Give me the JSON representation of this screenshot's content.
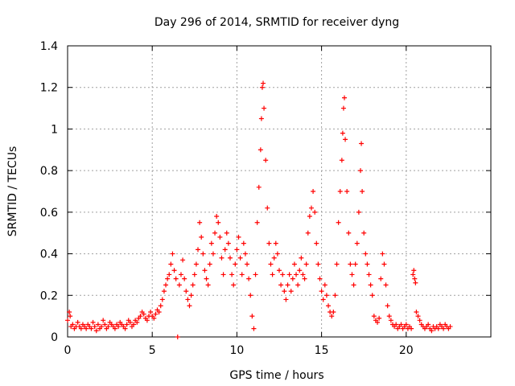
{
  "chart_data": {
    "type": "scatter",
    "title": "Day 296 of 2014, SRMTID for receiver dyng",
    "xlabel": "GPS time / hours",
    "ylabel": "SRMTID / TECUs",
    "xlim": [
      0,
      25
    ],
    "ylim": [
      0,
      1.4
    ],
    "xticks": [
      0,
      5,
      10,
      15,
      20
    ],
    "xtick_labels": [
      "0",
      "5",
      "10",
      "15",
      "20"
    ],
    "yticks": [
      0,
      0.2,
      0.4,
      0.6,
      0.8,
      1.0,
      1.2,
      1.4
    ],
    "ytick_labels": [
      "0",
      "0.2",
      "0.4",
      "0.6",
      "0.8",
      "1",
      "1.2",
      "1.4"
    ],
    "grid": true,
    "marker": "+",
    "series": [
      {
        "name": "SRMTID",
        "color": "#ff0000",
        "points": [
          [
            0.0,
            0.08
          ],
          [
            0.1,
            0.12
          ],
          [
            0.15,
            0.1
          ],
          [
            0.2,
            0.05
          ],
          [
            0.3,
            0.06
          ],
          [
            0.4,
            0.04
          ],
          [
            0.5,
            0.05
          ],
          [
            0.6,
            0.07
          ],
          [
            0.7,
            0.05
          ],
          [
            0.8,
            0.04
          ],
          [
            0.9,
            0.06
          ],
          [
            1.0,
            0.05
          ],
          [
            1.1,
            0.04
          ],
          [
            1.2,
            0.06
          ],
          [
            1.3,
            0.05
          ],
          [
            1.4,
            0.04
          ],
          [
            1.5,
            0.07
          ],
          [
            1.6,
            0.05
          ],
          [
            1.7,
            0.03
          ],
          [
            1.8,
            0.06
          ],
          [
            1.9,
            0.04
          ],
          [
            2.0,
            0.05
          ],
          [
            2.1,
            0.08
          ],
          [
            2.2,
            0.06
          ],
          [
            2.3,
            0.04
          ],
          [
            2.4,
            0.05
          ],
          [
            2.5,
            0.07
          ],
          [
            2.6,
            0.06
          ],
          [
            2.7,
            0.05
          ],
          [
            2.8,
            0.04
          ],
          [
            2.9,
            0.06
          ],
          [
            3.0,
            0.05
          ],
          [
            3.1,
            0.07
          ],
          [
            3.2,
            0.06
          ],
          [
            3.3,
            0.05
          ],
          [
            3.4,
            0.04
          ],
          [
            3.5,
            0.06
          ],
          [
            3.6,
            0.08
          ],
          [
            3.7,
            0.07
          ],
          [
            3.8,
            0.05
          ],
          [
            3.9,
            0.06
          ],
          [
            4.0,
            0.08
          ],
          [
            4.1,
            0.07
          ],
          [
            4.2,
            0.09
          ],
          [
            4.3,
            0.1
          ],
          [
            4.4,
            0.12
          ],
          [
            4.5,
            0.11
          ],
          [
            4.6,
            0.09
          ],
          [
            4.7,
            0.08
          ],
          [
            4.8,
            0.1
          ],
          [
            4.9,
            0.12
          ],
          [
            5.0,
            0.1
          ],
          [
            5.1,
            0.09
          ],
          [
            5.2,
            0.11
          ],
          [
            5.3,
            0.13
          ],
          [
            5.4,
            0.12
          ],
          [
            5.5,
            0.15
          ],
          [
            5.6,
            0.18
          ],
          [
            5.7,
            0.22
          ],
          [
            5.8,
            0.25
          ],
          [
            5.9,
            0.28
          ],
          [
            6.0,
            0.3
          ],
          [
            6.1,
            0.35
          ],
          [
            6.2,
            0.4
          ],
          [
            6.3,
            0.32
          ],
          [
            6.4,
            0.28
          ],
          [
            6.5,
            0.0
          ],
          [
            6.6,
            0.25
          ],
          [
            6.7,
            0.3
          ],
          [
            6.8,
            0.37
          ],
          [
            6.9,
            0.28
          ],
          [
            7.0,
            0.22
          ],
          [
            7.1,
            0.18
          ],
          [
            7.2,
            0.15
          ],
          [
            7.3,
            0.2
          ],
          [
            7.4,
            0.25
          ],
          [
            7.5,
            0.3
          ],
          [
            7.6,
            0.35
          ],
          [
            7.7,
            0.42
          ],
          [
            7.8,
            0.55
          ],
          [
            7.9,
            0.48
          ],
          [
            8.0,
            0.4
          ],
          [
            8.1,
            0.32
          ],
          [
            8.2,
            0.28
          ],
          [
            8.3,
            0.25
          ],
          [
            8.4,
            0.35
          ],
          [
            8.5,
            0.45
          ],
          [
            8.6,
            0.4
          ],
          [
            8.7,
            0.5
          ],
          [
            8.8,
            0.58
          ],
          [
            8.9,
            0.55
          ],
          [
            9.0,
            0.48
          ],
          [
            9.1,
            0.38
          ],
          [
            9.2,
            0.3
          ],
          [
            9.3,
            0.42
          ],
          [
            9.4,
            0.5
          ],
          [
            9.5,
            0.45
          ],
          [
            9.6,
            0.38
          ],
          [
            9.7,
            0.3
          ],
          [
            9.8,
            0.25
          ],
          [
            9.9,
            0.35
          ],
          [
            10.0,
            0.42
          ],
          [
            10.1,
            0.48
          ],
          [
            10.2,
            0.38
          ],
          [
            10.3,
            0.3
          ],
          [
            10.4,
            0.45
          ],
          [
            10.5,
            0.4
          ],
          [
            10.6,
            0.35
          ],
          [
            10.7,
            0.28
          ],
          [
            10.8,
            0.2
          ],
          [
            10.9,
            0.1
          ],
          [
            11.0,
            0.04
          ],
          [
            11.1,
            0.3
          ],
          [
            11.2,
            0.55
          ],
          [
            11.3,
            0.72
          ],
          [
            11.4,
            0.9
          ],
          [
            11.45,
            1.05
          ],
          [
            11.5,
            1.2
          ],
          [
            11.55,
            1.22
          ],
          [
            11.6,
            1.1
          ],
          [
            11.7,
            0.85
          ],
          [
            11.8,
            0.62
          ],
          [
            11.9,
            0.45
          ],
          [
            12.0,
            0.35
          ],
          [
            12.1,
            0.3
          ],
          [
            12.2,
            0.38
          ],
          [
            12.3,
            0.45
          ],
          [
            12.4,
            0.4
          ],
          [
            12.5,
            0.32
          ],
          [
            12.6,
            0.25
          ],
          [
            12.7,
            0.3
          ],
          [
            12.8,
            0.22
          ],
          [
            12.9,
            0.18
          ],
          [
            13.0,
            0.25
          ],
          [
            13.1,
            0.3
          ],
          [
            13.2,
            0.22
          ],
          [
            13.3,
            0.28
          ],
          [
            13.4,
            0.35
          ],
          [
            13.5,
            0.3
          ],
          [
            13.6,
            0.25
          ],
          [
            13.7,
            0.32
          ],
          [
            13.8,
            0.38
          ],
          [
            13.9,
            0.3
          ],
          [
            14.0,
            0.28
          ],
          [
            14.1,
            0.35
          ],
          [
            14.2,
            0.5
          ],
          [
            14.3,
            0.58
          ],
          [
            14.4,
            0.62
          ],
          [
            14.5,
            0.7
          ],
          [
            14.6,
            0.6
          ],
          [
            14.7,
            0.45
          ],
          [
            14.8,
            0.35
          ],
          [
            14.9,
            0.28
          ],
          [
            15.0,
            0.22
          ],
          [
            15.1,
            0.18
          ],
          [
            15.2,
            0.25
          ],
          [
            15.3,
            0.2
          ],
          [
            15.4,
            0.15
          ],
          [
            15.5,
            0.12
          ],
          [
            15.6,
            0.1
          ],
          [
            15.7,
            0.12
          ],
          [
            15.8,
            0.2
          ],
          [
            15.9,
            0.35
          ],
          [
            16.0,
            0.55
          ],
          [
            16.1,
            0.7
          ],
          [
            16.2,
            0.85
          ],
          [
            16.25,
            0.98
          ],
          [
            16.3,
            1.1
          ],
          [
            16.35,
            1.15
          ],
          [
            16.4,
            0.95
          ],
          [
            16.5,
            0.7
          ],
          [
            16.6,
            0.5
          ],
          [
            16.7,
            0.35
          ],
          [
            16.8,
            0.3
          ],
          [
            16.9,
            0.25
          ],
          [
            17.0,
            0.35
          ],
          [
            17.1,
            0.45
          ],
          [
            17.2,
            0.6
          ],
          [
            17.3,
            0.8
          ],
          [
            17.35,
            0.93
          ],
          [
            17.4,
            0.7
          ],
          [
            17.5,
            0.5
          ],
          [
            17.6,
            0.4
          ],
          [
            17.7,
            0.35
          ],
          [
            17.8,
            0.3
          ],
          [
            17.9,
            0.25
          ],
          [
            18.0,
            0.2
          ],
          [
            18.1,
            0.1
          ],
          [
            18.2,
            0.08
          ],
          [
            18.3,
            0.07
          ],
          [
            18.4,
            0.09
          ],
          [
            18.5,
            0.28
          ],
          [
            18.6,
            0.4
          ],
          [
            18.7,
            0.35
          ],
          [
            18.8,
            0.25
          ],
          [
            18.9,
            0.15
          ],
          [
            19.0,
            0.1
          ],
          [
            19.1,
            0.08
          ],
          [
            19.2,
            0.06
          ],
          [
            19.3,
            0.05
          ],
          [
            19.4,
            0.06
          ],
          [
            19.5,
            0.04
          ],
          [
            19.6,
            0.05
          ],
          [
            19.7,
            0.06
          ],
          [
            19.8,
            0.04
          ],
          [
            19.9,
            0.05
          ],
          [
            20.0,
            0.06
          ],
          [
            20.1,
            0.04
          ],
          [
            20.2,
            0.05
          ],
          [
            20.3,
            0.04
          ],
          [
            20.4,
            0.3
          ],
          [
            20.45,
            0.32
          ],
          [
            20.5,
            0.28
          ],
          [
            20.55,
            0.26
          ],
          [
            20.6,
            0.12
          ],
          [
            20.7,
            0.1
          ],
          [
            20.8,
            0.08
          ],
          [
            20.9,
            0.06
          ],
          [
            21.0,
            0.05
          ],
          [
            21.1,
            0.04
          ],
          [
            21.2,
            0.05
          ],
          [
            21.3,
            0.06
          ],
          [
            21.4,
            0.04
          ],
          [
            21.5,
            0.03
          ],
          [
            21.6,
            0.05
          ],
          [
            21.7,
            0.04
          ],
          [
            21.8,
            0.05
          ],
          [
            21.9,
            0.04
          ],
          [
            22.0,
            0.06
          ],
          [
            22.1,
            0.05
          ],
          [
            22.2,
            0.04
          ],
          [
            22.3,
            0.06
          ],
          [
            22.4,
            0.05
          ],
          [
            22.5,
            0.04
          ],
          [
            22.6,
            0.05
          ]
        ]
      }
    ]
  }
}
